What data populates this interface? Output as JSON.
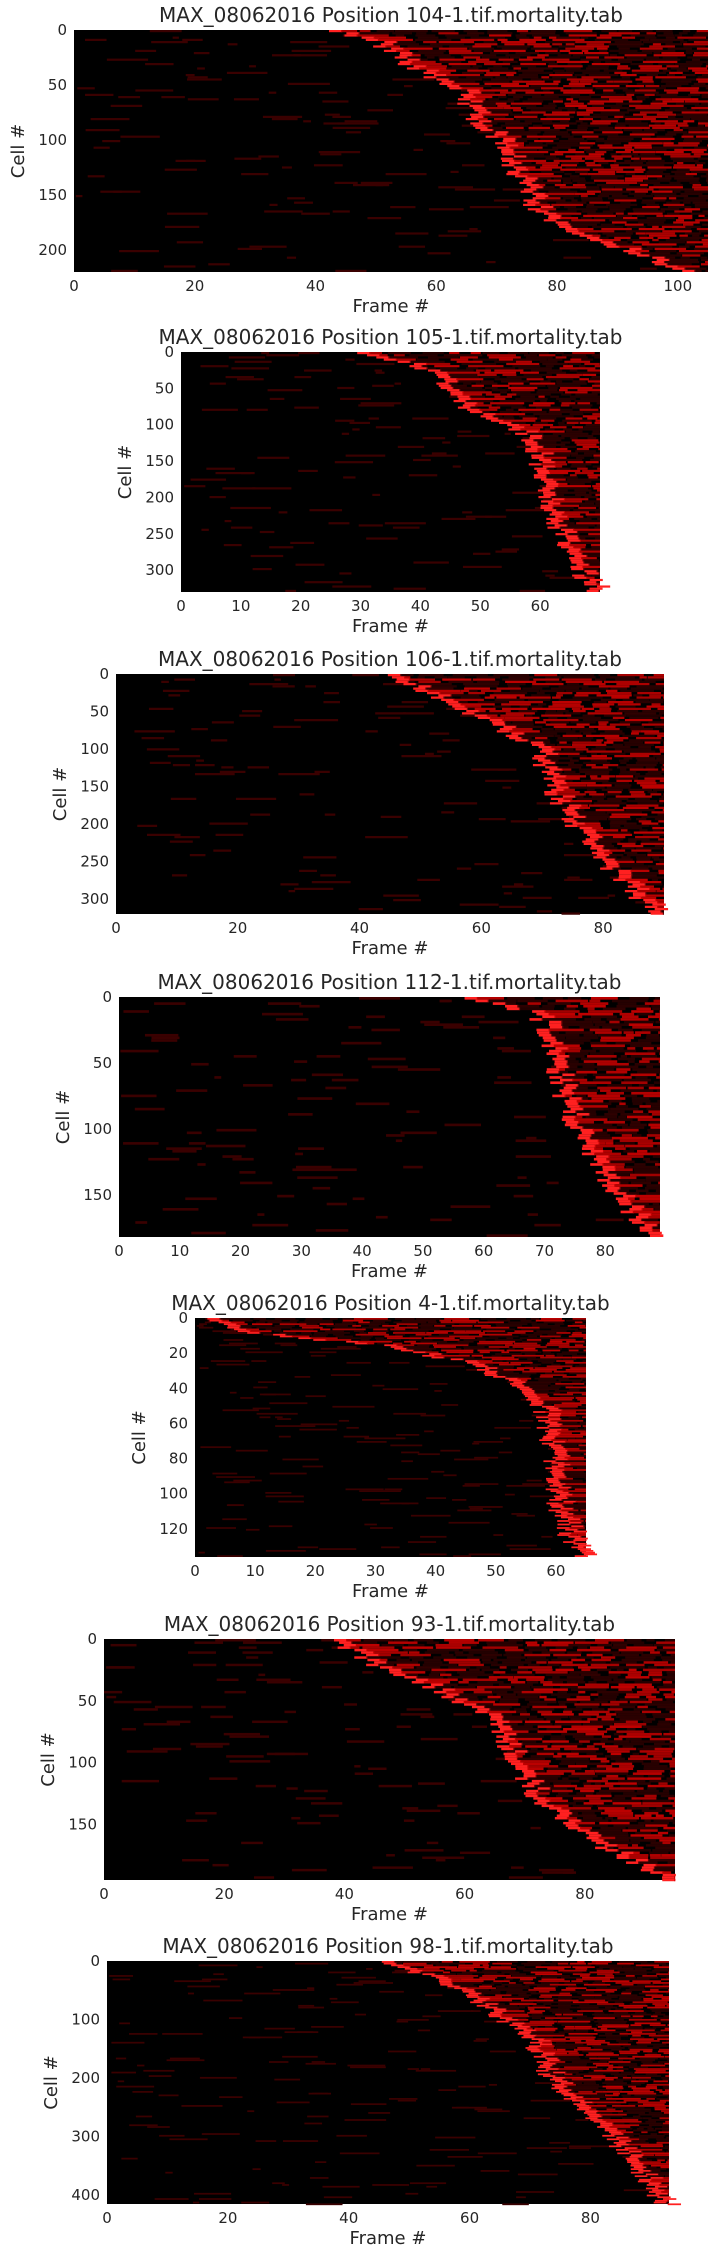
{
  "figure": {
    "xlabel": "Frame #",
    "ylabel": "Cell #",
    "heatmap_colors": {
      "background": "#000000",
      "low": "#3a0000",
      "mid": "#c00000",
      "high": "#ff2020"
    }
  },
  "chart_data": [
    {
      "type": "heatmap",
      "title": "MAX_08062016 Position 104-1.tif.mortality.tab",
      "xlabel": "Frame #",
      "ylabel": "Cell #",
      "n_frames": 105,
      "n_cells": 220,
      "xlim": [
        0,
        105
      ],
      "ylim": [
        220,
        0
      ],
      "xticks": [
        0,
        20,
        40,
        60,
        80,
        100
      ],
      "yticks": [
        0,
        50,
        100,
        150,
        200
      ],
      "onset_curve": [
        [
          0,
          43
        ],
        [
          10,
          50
        ],
        [
          30,
          55
        ],
        [
          55,
          64
        ],
        [
          80,
          66
        ],
        [
          100,
          70
        ],
        [
          130,
          73
        ],
        [
          160,
          76
        ],
        [
          185,
          82
        ],
        [
          200,
          92
        ],
        [
          220,
          101
        ]
      ]
    },
    {
      "type": "heatmap",
      "title": "MAX_08062016 Position 105-1.tif.mortality.tab",
      "xlabel": "Frame #",
      "ylabel": "Cell #",
      "n_frames": 70,
      "n_cells": 330,
      "xlim": [
        0,
        70
      ],
      "ylim": [
        330,
        0
      ],
      "xticks": [
        0,
        10,
        20,
        30,
        40,
        50,
        60
      ],
      "yticks": [
        0,
        50,
        100,
        150,
        200,
        250,
        300
      ],
      "onset_curve": [
        [
          0,
          30
        ],
        [
          20,
          40
        ],
        [
          50,
          45
        ],
        [
          80,
          48
        ],
        [
          110,
          57
        ],
        [
          140,
          59
        ],
        [
          200,
          61
        ],
        [
          250,
          63
        ],
        [
          300,
          66
        ],
        [
          330,
          69
        ]
      ]
    },
    {
      "type": "heatmap",
      "title": "MAX_08062016 Position 106-1.tif.mortality.tab",
      "xlabel": "Frame #",
      "ylabel": "Cell #",
      "n_frames": 90,
      "n_cells": 320,
      "xlim": [
        0,
        90
      ],
      "ylim": [
        320,
        0
      ],
      "xticks": [
        0,
        20,
        40,
        60,
        80
      ],
      "yticks": [
        0,
        50,
        100,
        150,
        200,
        250,
        300
      ],
      "onset_curve": [
        [
          0,
          45
        ],
        [
          20,
          50
        ],
        [
          50,
          58
        ],
        [
          80,
          65
        ],
        [
          100,
          69
        ],
        [
          150,
          71
        ],
        [
          200,
          75
        ],
        [
          250,
          80
        ],
        [
          300,
          86
        ],
        [
          320,
          89
        ]
      ]
    },
    {
      "type": "heatmap",
      "title": "MAX_08062016 Position 112-1.tif.mortality.tab",
      "xlabel": "Frame #",
      "ylabel": "Cell #",
      "n_frames": 89,
      "n_cells": 182,
      "xlim": [
        0,
        89
      ],
      "ylim": [
        182,
        0
      ],
      "xticks": [
        0,
        10,
        20,
        30,
        40,
        50,
        60,
        70,
        80
      ],
      "yticks": [
        0,
        50,
        100,
        150
      ],
      "onset_curve": [
        [
          0,
          57
        ],
        [
          10,
          67
        ],
        [
          20,
          70
        ],
        [
          50,
          71
        ],
        [
          80,
          73
        ],
        [
          110,
          76
        ],
        [
          140,
          80
        ],
        [
          170,
          85
        ],
        [
          182,
          88
        ]
      ]
    },
    {
      "type": "heatmap",
      "title": "MAX_08062016 Position 4-1.tif.mortality.tab",
      "xlabel": "Frame #",
      "ylabel": "Cell #",
      "n_frames": 65,
      "n_cells": 136,
      "xlim": [
        0,
        65
      ],
      "ylim": [
        136,
        0
      ],
      "xticks": [
        0,
        10,
        20,
        30,
        40,
        50,
        60
      ],
      "yticks": [
        0,
        20,
        40,
        60,
        80,
        100,
        120
      ],
      "onset_curve": [
        [
          0,
          2
        ],
        [
          8,
          9
        ],
        [
          15,
          30
        ],
        [
          25,
          45
        ],
        [
          40,
          55
        ],
        [
          55,
          58
        ],
        [
          80,
          59
        ],
        [
          110,
          60
        ],
        [
          125,
          62
        ],
        [
          136,
          64
        ]
      ]
    },
    {
      "type": "heatmap",
      "title": "MAX_08062016 Position 93-1.tif.mortality.tab",
      "xlabel": "Frame #",
      "ylabel": "Cell #",
      "n_frames": 95,
      "n_cells": 195,
      "xlim": [
        0,
        95
      ],
      "ylim": [
        195,
        0
      ],
      "xticks": [
        0,
        20,
        40,
        60,
        80
      ],
      "yticks": [
        0,
        50,
        100,
        150
      ],
      "onset_curve": [
        [
          0,
          38
        ],
        [
          20,
          45
        ],
        [
          40,
          55
        ],
        [
          60,
          63
        ],
        [
          80,
          66
        ],
        [
          100,
          68
        ],
        [
          130,
          72
        ],
        [
          160,
          80
        ],
        [
          195,
          94
        ]
      ]
    },
    {
      "type": "heatmap",
      "title": "MAX_08062016 Position 98-1.tif.mortality.tab",
      "xlabel": "Frame #",
      "ylabel": "Cell #",
      "n_frames": 93,
      "n_cells": 415,
      "xlim": [
        0,
        93
      ],
      "ylim": [
        415,
        0
      ],
      "xticks": [
        0,
        20,
        40,
        60,
        80
      ],
      "yticks": [
        0,
        100,
        200,
        300,
        400
      ],
      "onset_curve": [
        [
          0,
          45
        ],
        [
          30,
          55
        ],
        [
          60,
          60
        ],
        [
          100,
          65
        ],
        [
          130,
          70
        ],
        [
          200,
          73
        ],
        [
          250,
          78
        ],
        [
          300,
          83
        ],
        [
          350,
          87
        ],
        [
          415,
          92
        ]
      ]
    }
  ]
}
